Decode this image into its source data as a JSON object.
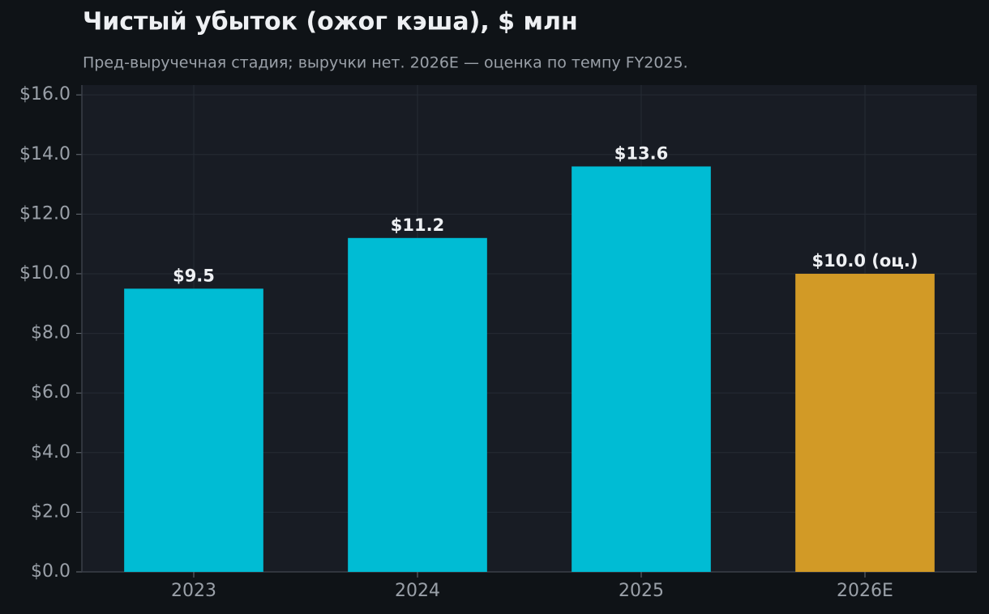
{
  "chart_data": {
    "type": "bar",
    "title": "Чистый убыток (ожог кэша), $ млн",
    "subtitle": "Пред-выручечная стадия; выручки нет. 2026E — оценка по темпу FY2025.",
    "categories": [
      "2023",
      "2024",
      "2025",
      "2026E"
    ],
    "values": [
      9.5,
      11.2,
      13.6,
      10.0
    ],
    "value_labels": [
      "$9.5",
      "$11.2",
      "$13.6",
      "$10.0 (оц.)"
    ],
    "colors": [
      "#00bcd4",
      "#00bcd4",
      "#00bcd4",
      "#d29a26"
    ],
    "ylim": [
      0,
      16.33
    ],
    "yticks": [
      {
        "value": 0,
        "label": "$0.0"
      },
      {
        "value": 2,
        "label": "$2.0"
      },
      {
        "value": 4,
        "label": "$4.0"
      },
      {
        "value": 6,
        "label": "$6.0"
      },
      {
        "value": 8,
        "label": "$8.0"
      },
      {
        "value": 10,
        "label": "$10.0"
      },
      {
        "value": 12,
        "label": "$12.0"
      },
      {
        "value": 14,
        "label": "$14.0"
      },
      {
        "value": 16,
        "label": "$16.0"
      }
    ],
    "grid": true
  }
}
